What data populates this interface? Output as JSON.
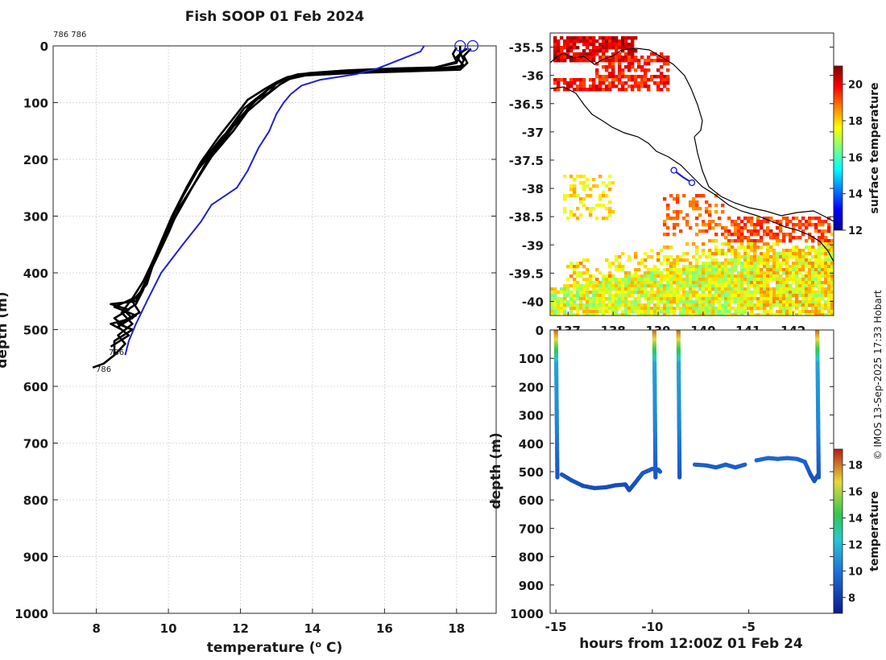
{
  "chart_data": [
    {
      "type": "line",
      "name": "profile",
      "title": "Fish SOOP 01 Feb 2024",
      "xlabel": "temperature (",
      "xlabel_sup": "o",
      "xlabel_end": " C)",
      "ylabel": "depth (m)",
      "xlim": [
        6.8,
        19.1
      ],
      "ylim": [
        0,
        1000
      ],
      "x_ticks": [
        8,
        10,
        12,
        14,
        16,
        18
      ],
      "y_ticks": [
        0,
        100,
        200,
        300,
        400,
        500,
        600,
        700,
        800,
        900,
        1000
      ],
      "top_label": "786 786",
      "bottom_labels": [
        "786",
        "786"
      ],
      "series": [
        {
          "name": "cast 1",
          "color": "#000000",
          "points": [
            [
              18.3,
              5
            ],
            [
              18.1,
              12
            ],
            [
              18.2,
              25
            ],
            [
              18.1,
              38
            ],
            [
              17.5,
              41
            ],
            [
              16.0,
              42
            ],
            [
              14.8,
              44
            ],
            [
              13.6,
              50
            ],
            [
              13.2,
              58
            ],
            [
              13.0,
              66
            ],
            [
              12.8,
              82
            ],
            [
              12.3,
              100
            ],
            [
              12.0,
              130
            ],
            [
              11.5,
              160
            ],
            [
              11.0,
              200
            ],
            [
              10.6,
              240
            ],
            [
              10.2,
              290
            ],
            [
              9.9,
              340
            ],
            [
              9.6,
              380
            ],
            [
              9.4,
              420
            ],
            [
              9.0,
              450
            ],
            [
              9.2,
              470
            ],
            [
              8.6,
              490
            ],
            [
              9.0,
              500
            ],
            [
              8.5,
              520
            ],
            [
              8.5,
              545
            ]
          ]
        },
        {
          "name": "cast 2",
          "color": "#000000",
          "points": [
            [
              18.2,
              8
            ],
            [
              18.0,
              20
            ],
            [
              18.2,
              35
            ],
            [
              17.2,
              42
            ],
            [
              15.8,
              44
            ],
            [
              14.5,
              46
            ],
            [
              13.5,
              52
            ],
            [
              13.2,
              60
            ],
            [
              12.9,
              70
            ],
            [
              12.6,
              85
            ],
            [
              12.1,
              110
            ],
            [
              11.7,
              145
            ],
            [
              11.3,
              180
            ],
            [
              10.8,
              220
            ],
            [
              10.4,
              265
            ],
            [
              10.0,
              315
            ],
            [
              9.7,
              360
            ],
            [
              9.5,
              400
            ],
            [
              9.2,
              440
            ],
            [
              8.5,
              460
            ],
            [
              9.1,
              475
            ],
            [
              8.6,
              495
            ],
            [
              8.9,
              510
            ],
            [
              8.4,
              530
            ]
          ]
        },
        {
          "name": "cast 3",
          "color": "#000000",
          "points": [
            [
              18.1,
              0
            ],
            [
              18.1,
              15
            ],
            [
              18.0,
              30
            ],
            [
              17.4,
              38
            ],
            [
              16.2,
              40
            ],
            [
              15.0,
              43
            ],
            [
              13.9,
              48
            ],
            [
              13.3,
              55
            ],
            [
              13.0,
              64
            ],
            [
              12.7,
              75
            ],
            [
              12.2,
              95
            ],
            [
              11.9,
              120
            ],
            [
              11.4,
              160
            ],
            [
              10.9,
              205
            ],
            [
              10.5,
              250
            ],
            [
              10.1,
              300
            ],
            [
              9.8,
              345
            ],
            [
              9.5,
              390
            ],
            [
              9.3,
              430
            ],
            [
              9.1,
              455
            ],
            [
              8.8,
              468
            ],
            [
              9.0,
              480
            ],
            [
              8.4,
              490
            ],
            [
              8.7,
              500
            ]
          ]
        },
        {
          "name": "cast 4",
          "color": "#000000",
          "points": [
            [
              18.4,
              5
            ],
            [
              18.2,
              18
            ],
            [
              18.3,
              30
            ],
            [
              18.1,
              42
            ],
            [
              16.6,
              45
            ],
            [
              15.1,
              48
            ],
            [
              13.8,
              52
            ],
            [
              13.1,
              62
            ],
            [
              12.8,
              75
            ],
            [
              12.4,
              98
            ],
            [
              12.0,
              125
            ],
            [
              11.6,
              160
            ],
            [
              11.1,
              200
            ],
            [
              10.7,
              245
            ],
            [
              10.3,
              290
            ],
            [
              9.9,
              335
            ],
            [
              9.6,
              375
            ],
            [
              9.3,
              415
            ],
            [
              9.0,
              445
            ],
            [
              8.7,
              470
            ],
            [
              9.0,
              490
            ],
            [
              8.6,
              510
            ],
            [
              8.8,
              525
            ],
            [
              8.5,
              545
            ],
            [
              8.2,
              560
            ],
            [
              7.9,
              567
            ]
          ]
        },
        {
          "name": "cast 5",
          "color": "#000000",
          "points": [
            [
              18.0,
              3
            ],
            [
              17.9,
              14
            ],
            [
              18.0,
              28
            ],
            [
              17.3,
              40
            ],
            [
              16.4,
              43
            ],
            [
              15.4,
              45
            ],
            [
              14.2,
              47
            ],
            [
              13.7,
              50
            ],
            [
              13.4,
              57
            ],
            [
              13.1,
              68
            ],
            [
              12.7,
              88
            ],
            [
              12.2,
              115
            ],
            [
              11.8,
              150
            ],
            [
              11.2,
              195
            ],
            [
              10.8,
              235
            ],
            [
              10.3,
              285
            ],
            [
              10.0,
              330
            ],
            [
              9.7,
              370
            ],
            [
              9.4,
              410
            ],
            [
              9.1,
              450
            ],
            [
              8.4,
              455
            ],
            [
              8.9,
              465
            ],
            [
              8.5,
              480
            ],
            [
              8.8,
              495
            ]
          ]
        },
        {
          "name": "cast 6",
          "color": "#1f1fd6",
          "points": [
            [
              17.1,
              0
            ],
            [
              17.0,
              10
            ],
            [
              16.6,
              20
            ],
            [
              16.2,
              30
            ],
            [
              15.8,
              40
            ],
            [
              15.2,
              50
            ],
            [
              14.2,
              60
            ],
            [
              13.7,
              70
            ],
            [
              13.4,
              85
            ],
            [
              13.2,
              100
            ],
            [
              13.0,
              120
            ],
            [
              12.8,
              150
            ],
            [
              12.5,
              180
            ],
            [
              12.2,
              220
            ],
            [
              11.9,
              250
            ],
            [
              11.2,
              280
            ],
            [
              10.9,
              310
            ],
            [
              10.4,
              350
            ],
            [
              9.8,
              400
            ],
            [
              9.4,
              450
            ],
            [
              9.1,
              490
            ],
            [
              8.9,
              520
            ],
            [
              8.8,
              545
            ]
          ]
        }
      ],
      "markers": [
        [
          18.1,
          0
        ],
        [
          18.45,
          0
        ]
      ]
    },
    {
      "type": "heatmap",
      "name": "map",
      "xlim": [
        136.6,
        142.9
      ],
      "ylim": [
        -40.25,
        -35.25
      ],
      "x_ticks": [
        137,
        138,
        139,
        140,
        141,
        142
      ],
      "x_tick_labels": [
        "137",
        "138",
        "139",
        "140",
        "141",
        "142"
      ],
      "y_ticks": [
        -35.5,
        -36,
        -36.5,
        -37,
        -37.5,
        -38,
        -38.5,
        -39,
        -39.5,
        -40
      ],
      "y_tick_labels": [
        "-35.5",
        "-36",
        "-36.5",
        "-37",
        "-37.5",
        "-38",
        "-38.5",
        "-39",
        "-39.5",
        "-40"
      ],
      "colorbar": {
        "label": "surface temperature",
        "min": 12,
        "max": 21,
        "ticks": [
          12,
          14,
          16,
          18,
          20
        ]
      },
      "track": [
        [
          139.35,
          -37.68
        ],
        [
          139.55,
          -37.8
        ],
        [
          139.75,
          -37.9
        ]
      ]
    },
    {
      "type": "scatter",
      "name": "timeseries",
      "xlabel": "hours from 12:00Z 01 Feb 24",
      "ylabel": "depth (m)",
      "xlim": [
        -15.3,
        -0.6
      ],
      "ylim": [
        0,
        1000
      ],
      "x_ticks": [
        -15,
        -10,
        -5
      ],
      "x_tick_labels": [
        "-15",
        "-10",
        "-5"
      ],
      "y_ticks": [
        0,
        100,
        200,
        300,
        400,
        500,
        600,
        700,
        800,
        900,
        1000
      ],
      "colorbar": {
        "label": "temperature",
        "min": 6.8,
        "max": 19.2,
        "ticks": [
          8,
          10,
          12,
          14,
          16,
          18
        ]
      },
      "bottom_depth": [
        [
          -14.7,
          510
        ],
        [
          -14.2,
          530
        ],
        [
          -13.6,
          550
        ],
        [
          -13.0,
          558
        ],
        [
          -12.4,
          555
        ],
        [
          -11.9,
          548
        ],
        [
          -11.4,
          545
        ],
        [
          -11.2,
          565
        ],
        [
          -10.9,
          540
        ],
        [
          -10.5,
          505
        ],
        [
          -10.0,
          490
        ],
        [
          -9.7,
          493
        ],
        [
          -9.6,
          500
        ],
        [
          -8.4,
          470
        ],
        [
          -7.8,
          475
        ],
        [
          -7.2,
          478
        ],
        [
          -6.7,
          485
        ],
        [
          -6.2,
          475
        ],
        [
          -5.7,
          485
        ],
        [
          -5.2,
          475
        ],
        [
          -4.6,
          460
        ],
        [
          -4.0,
          452
        ],
        [
          -3.5,
          455
        ],
        [
          -3.0,
          452
        ],
        [
          -2.5,
          455
        ],
        [
          -2.1,
          465
        ],
        [
          -1.8,
          510
        ],
        [
          -1.6,
          533
        ],
        [
          -1.4,
          510
        ]
      ],
      "casts": [
        [
          -15.0,
          -14.7
        ],
        [
          -9.9,
          -9.65
        ],
        [
          -8.65,
          -8.4
        ],
        [
          -1.45,
          -1.15
        ]
      ]
    }
  ],
  "credit": "© IMOS 13-Sep-2025 17:33 Hobart"
}
